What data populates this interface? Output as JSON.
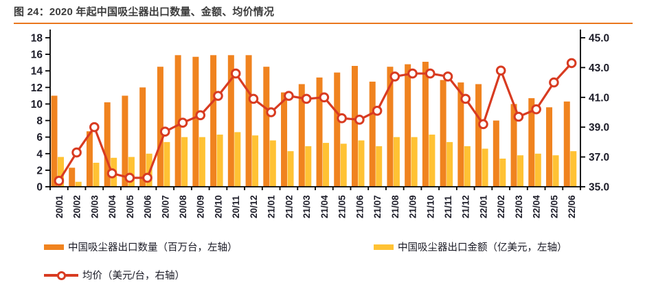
{
  "header": {
    "title": "图 24：2020 年起中国吸尘器出口数量、金额、均价情况"
  },
  "colors": {
    "quantity_bar": "#F0831F",
    "amount_bar": "#FFC234",
    "price_line": "#D83B21",
    "axis_text": "#1C1C28",
    "title_text": "#3B3B3B",
    "rule": "#E9771E",
    "axis_line": "#000000"
  },
  "legend": [
    {
      "label": "中国吸尘器出口数量（百万台，左轴）",
      "type": "bar",
      "color_key": "quantity_bar"
    },
    {
      "label": "中国吸尘器出口金额（亿美元，左轴）",
      "type": "bar",
      "color_key": "amount_bar"
    },
    {
      "label": "均价（美元/台，右轴）",
      "type": "line",
      "color_key": "price_line"
    }
  ],
  "chart_data": {
    "type": "combo-bar-line",
    "categories": [
      "20/01",
      "20/02",
      "20/03",
      "20/04",
      "20/05",
      "20/06",
      "20/07",
      "20/08",
      "20/09",
      "20/10",
      "20/11",
      "20/12",
      "21/01",
      "21/02",
      "21/03",
      "21/04",
      "21/05",
      "21/06",
      "21/07",
      "21/08",
      "21/09",
      "21/10",
      "21/11",
      "21/12",
      "22/01",
      "22/02",
      "22/03",
      "22/04",
      "22/05",
      "22/06"
    ],
    "series": [
      {
        "name": "中国吸尘器出口数量（百万台，左轴）",
        "type": "bar",
        "axis": "left",
        "color_key": "quantity_bar",
        "values": [
          11.0,
          2.3,
          6.7,
          10.2,
          11.0,
          12.0,
          14.5,
          15.9,
          15.7,
          15.9,
          15.9,
          15.9,
          14.5,
          11.4,
          12.4,
          13.2,
          13.8,
          14.6,
          12.7,
          14.5,
          14.8,
          15.1,
          12.9,
          12.6,
          12.4,
          8.0,
          10.0,
          10.7,
          9.6,
          10.3
        ]
      },
      {
        "name": "中国吸尘器出口金额（亿美元，左轴）",
        "type": "bar",
        "axis": "left",
        "color_key": "amount_bar",
        "values": [
          3.6,
          0.6,
          2.9,
          3.5,
          3.6,
          4.0,
          5.4,
          6.0,
          6.0,
          6.3,
          6.6,
          6.2,
          5.6,
          4.3,
          4.9,
          5.3,
          5.2,
          5.6,
          4.9,
          6.0,
          6.0,
          6.3,
          5.4,
          4.9,
          4.6,
          3.4,
          3.8,
          4.0,
          3.8,
          4.3
        ]
      },
      {
        "name": "均价（美元/台，右轴）",
        "type": "line",
        "axis": "right",
        "color_key": "price_line",
        "values": [
          35.4,
          37.3,
          39.0,
          35.9,
          35.6,
          35.6,
          38.7,
          39.3,
          39.8,
          41.1,
          42.6,
          40.9,
          40.0,
          41.1,
          40.9,
          41.0,
          39.6,
          39.5,
          40.1,
          42.4,
          42.6,
          42.6,
          42.4,
          40.9,
          39.2,
          42.8,
          39.7,
          40.2,
          42.0,
          43.3
        ]
      }
    ],
    "left_axis": {
      "min": 0,
      "max": 18,
      "ticks": [
        0,
        2,
        4,
        6,
        8,
        10,
        12,
        14,
        16,
        18
      ]
    },
    "right_axis": {
      "min": 35,
      "max": 45,
      "ticks": [
        35,
        37,
        39,
        41,
        43,
        45
      ],
      "tick_labels": [
        "35.0",
        "37.0",
        "39.0",
        "41.0",
        "43.0",
        "45.0"
      ]
    },
    "grid": false,
    "legend_position": "bottom"
  }
}
